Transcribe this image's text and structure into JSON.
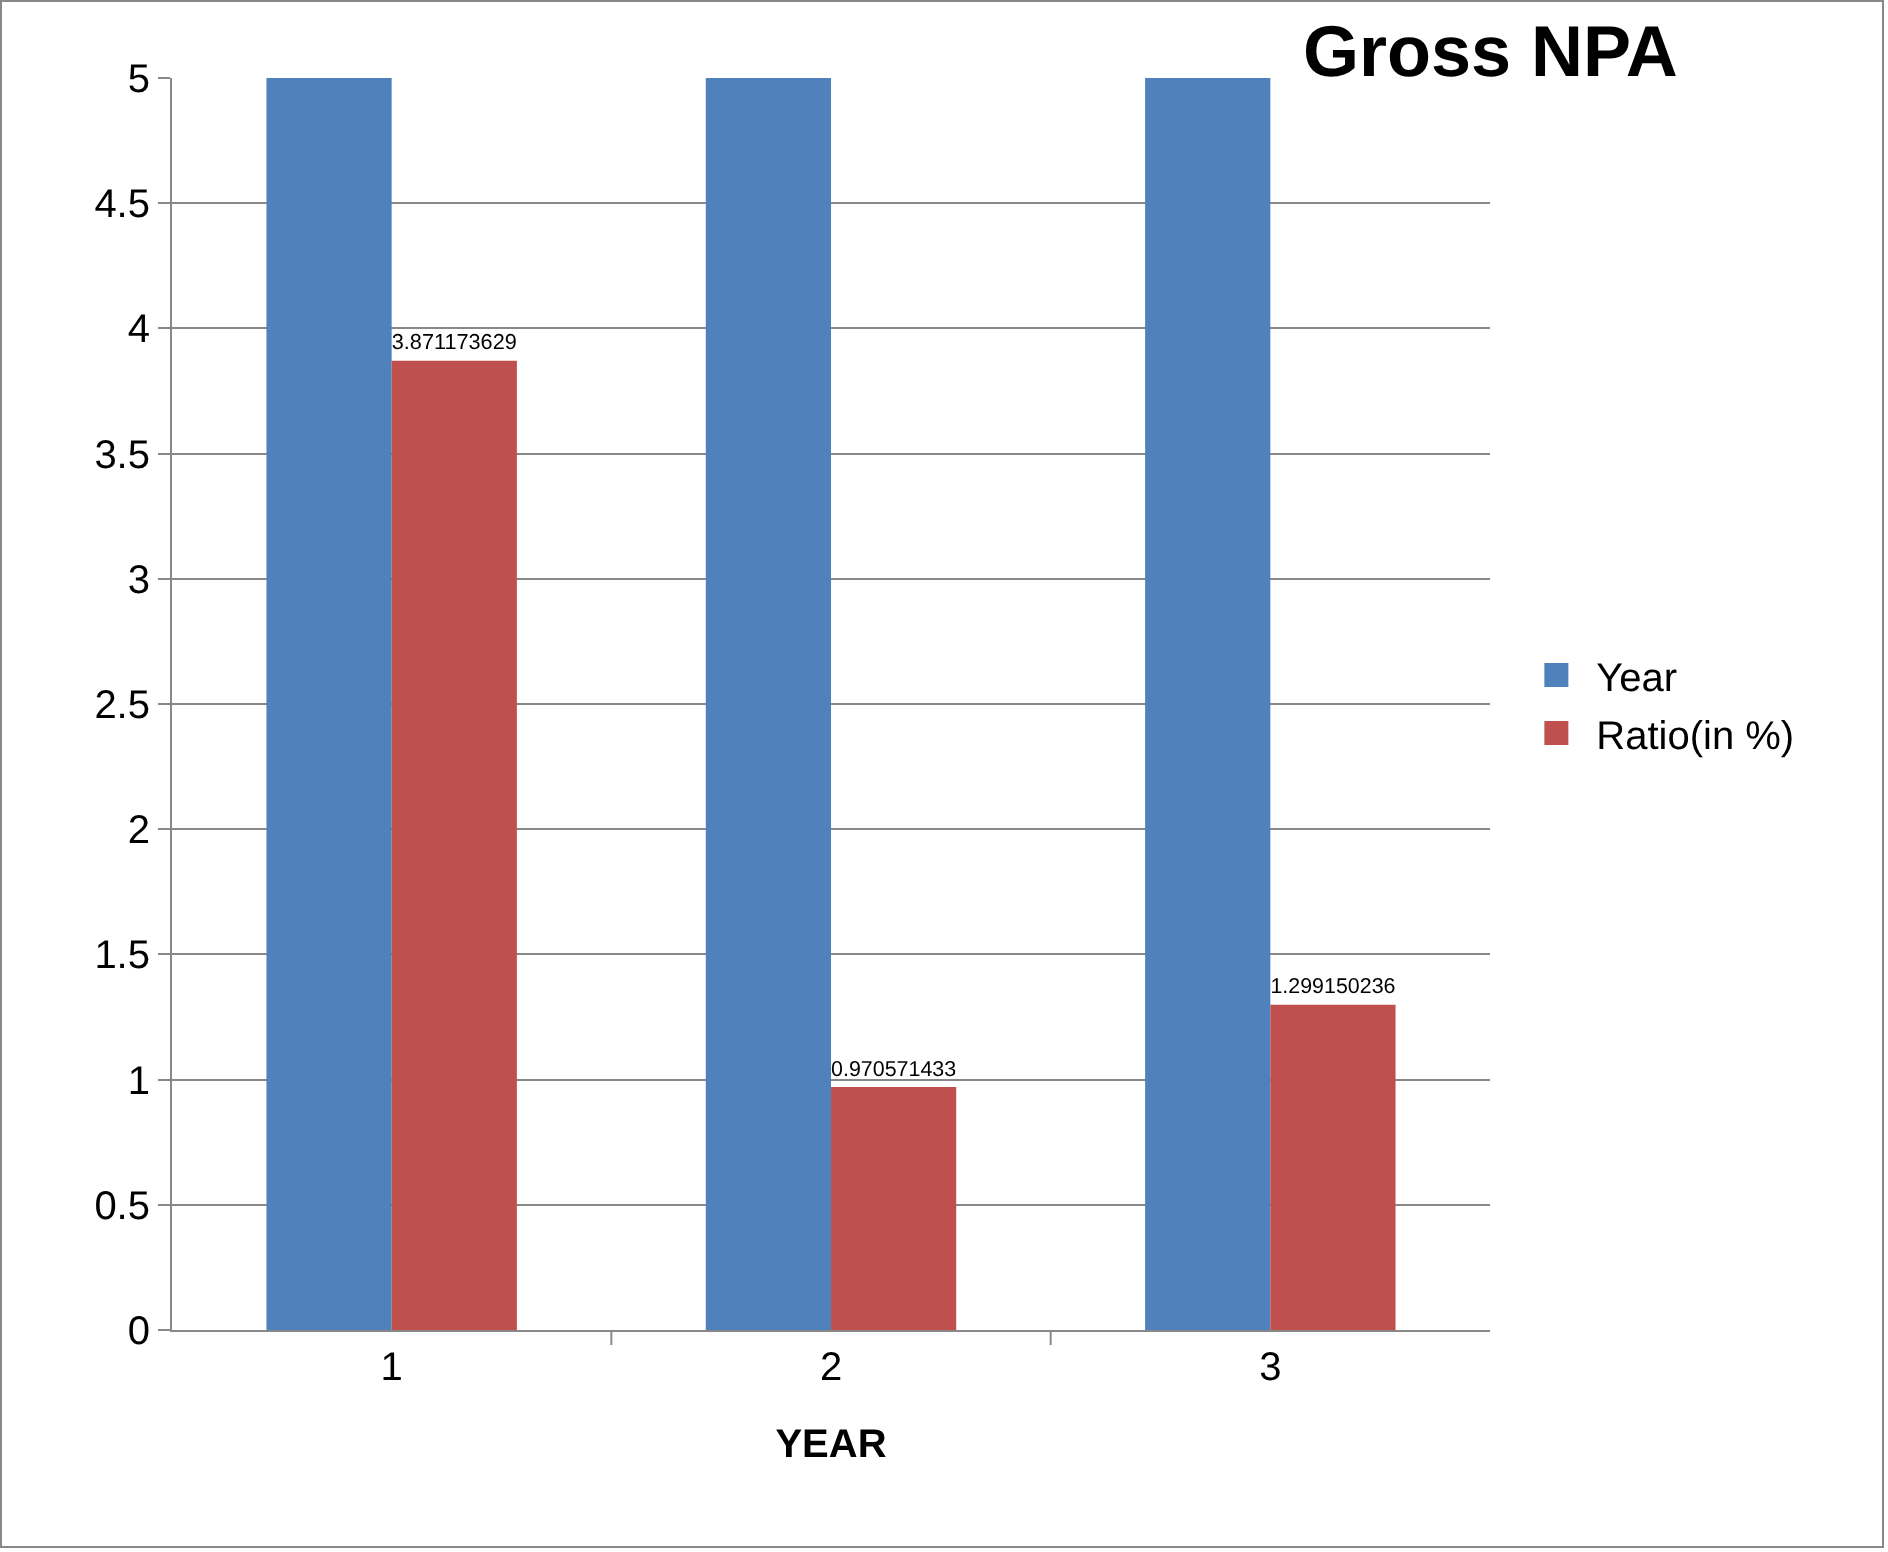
{
  "chart_data": {
    "type": "bar",
    "title": "Gross NPA",
    "xlabel": "YEAR",
    "categories": [
      "1",
      "2",
      "3"
    ],
    "series": [
      {
        "name": "Year",
        "color": "#4f81bd",
        "values": [
          5,
          5,
          5
        ]
      },
      {
        "name": "Ratio(in %)",
        "color": "#c0504d",
        "values": [
          3.871173629,
          0.970571433,
          1.299150236
        ],
        "value_labels": [
          "3.871173629",
          "0.970571433",
          "1.299150236"
        ]
      }
    ],
    "ylim": [
      0,
      5
    ],
    "yticks": [
      0,
      0.5,
      1,
      1.5,
      2,
      2.5,
      3,
      3.5,
      4,
      4.5,
      5
    ],
    "grid": "y",
    "legend": "right"
  }
}
